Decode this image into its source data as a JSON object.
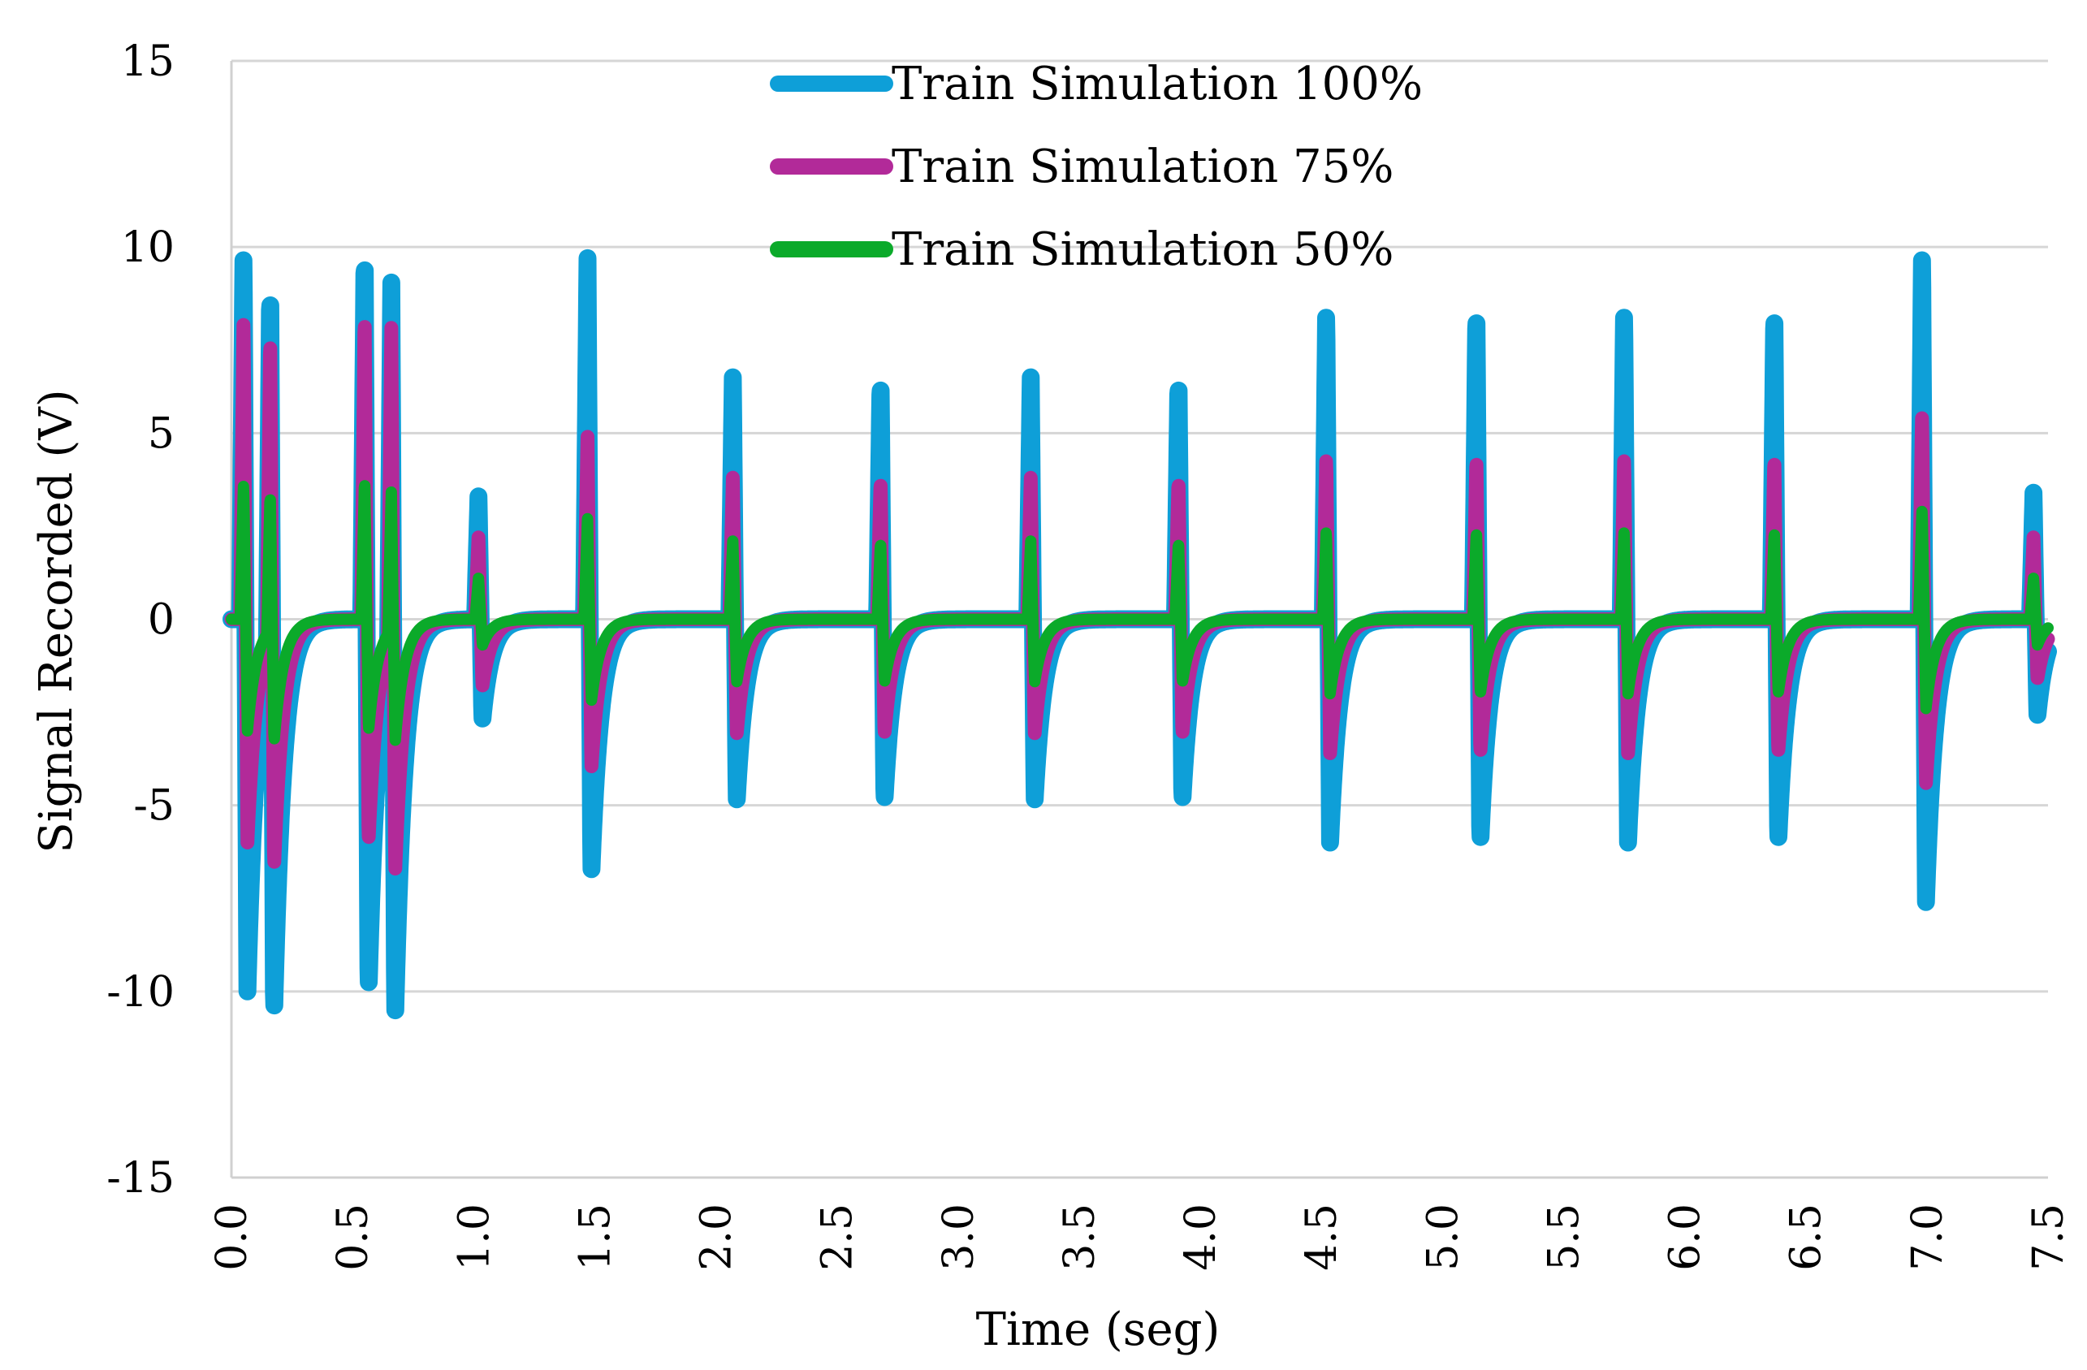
{
  "chart_data": {
    "type": "line",
    "title": "",
    "xlabel": "Time (seg)",
    "ylabel": "Signal Recorded (V)",
    "xlim": [
      0,
      7.5
    ],
    "ylim": [
      -15,
      15
    ],
    "x_ticks": [
      "0.0",
      "0.5",
      "1.0",
      "1.5",
      "2.0",
      "2.5",
      "3.0",
      "3.5",
      "4.0",
      "4.5",
      "5.0",
      "5.5",
      "6.0",
      "6.5",
      "7.0",
      "7.5"
    ],
    "y_ticks": [
      "15",
      "10",
      "5",
      "0",
      "-5",
      "-10",
      "-15"
    ],
    "grid": "horizontal",
    "legend_position": "top-center",
    "series": [
      {
        "name": "Train Simulation 100%",
        "color": "#0E9FD8",
        "pulses": [
          {
            "t": 0.05,
            "pos": 10,
            "neg": -10
          },
          {
            "t": 0.16,
            "pos": 10,
            "neg": -10
          },
          {
            "t": 0.55,
            "pos": 10,
            "neg": -10
          },
          {
            "t": 0.66,
            "pos": 10,
            "neg": -10
          },
          {
            "t": 1.02,
            "pos": 3.3,
            "neg": -2.7
          },
          {
            "t": 1.47,
            "pos": 9.7,
            "neg": -6.8
          },
          {
            "t": 2.07,
            "pos": 6.5,
            "neg": -4.9
          },
          {
            "t": 2.68,
            "pos": 6.5,
            "neg": -4.9
          },
          {
            "t": 3.3,
            "pos": 6.5,
            "neg": -4.9
          },
          {
            "t": 3.91,
            "pos": 6.5,
            "neg": -4.9
          },
          {
            "t": 4.52,
            "pos": 8.4,
            "neg": -6.0
          },
          {
            "t": 5.14,
            "pos": 8.4,
            "neg": -6.0
          },
          {
            "t": 5.75,
            "pos": 8.4,
            "neg": -6.0
          },
          {
            "t": 6.37,
            "pos": 8.4,
            "neg": -6.0
          },
          {
            "t": 6.98,
            "pos": 10,
            "neg": -7.6
          },
          {
            "t": 7.44,
            "pos": 3.4,
            "neg": -2.6
          }
        ]
      },
      {
        "name": "Train Simulation 75%",
        "color": "#B22A99",
        "pulses": [
          {
            "t": 0.05,
            "pos": 8.2,
            "neg": -6.0
          },
          {
            "t": 0.16,
            "pos": 8.3,
            "neg": -6.3
          },
          {
            "t": 0.55,
            "pos": 8.3,
            "neg": -6.0
          },
          {
            "t": 0.66,
            "pos": 8.4,
            "neg": -6.4
          },
          {
            "t": 1.02,
            "pos": 2.2,
            "neg": -1.8
          },
          {
            "t": 1.47,
            "pos": 4.9,
            "neg": -4.0
          },
          {
            "t": 2.07,
            "pos": 3.8,
            "neg": -3.1
          },
          {
            "t": 2.68,
            "pos": 3.8,
            "neg": -3.1
          },
          {
            "t": 3.3,
            "pos": 3.8,
            "neg": -3.1
          },
          {
            "t": 3.91,
            "pos": 3.8,
            "neg": -3.1
          },
          {
            "t": 4.52,
            "pos": 4.4,
            "neg": -3.6
          },
          {
            "t": 5.14,
            "pos": 4.4,
            "neg": -3.6
          },
          {
            "t": 5.75,
            "pos": 4.4,
            "neg": -3.6
          },
          {
            "t": 6.37,
            "pos": 4.4,
            "neg": -3.6
          },
          {
            "t": 6.98,
            "pos": 5.6,
            "neg": -4.4
          },
          {
            "t": 7.44,
            "pos": 2.2,
            "neg": -1.6
          }
        ]
      },
      {
        "name": "Train Simulation 50%",
        "color": "#0BAA2A",
        "pulses": [
          {
            "t": 0.05,
            "pos": 3.7,
            "neg": -3.0
          },
          {
            "t": 0.16,
            "pos": 3.7,
            "neg": -3.1
          },
          {
            "t": 0.55,
            "pos": 3.8,
            "neg": -3.0
          },
          {
            "t": 0.66,
            "pos": 3.7,
            "neg": -3.1
          },
          {
            "t": 1.02,
            "pos": 1.1,
            "neg": -0.7
          },
          {
            "t": 1.47,
            "pos": 2.7,
            "neg": -2.2
          },
          {
            "t": 2.07,
            "pos": 2.1,
            "neg": -1.7
          },
          {
            "t": 2.68,
            "pos": 2.1,
            "neg": -1.7
          },
          {
            "t": 3.3,
            "pos": 2.1,
            "neg": -1.7
          },
          {
            "t": 3.91,
            "pos": 2.1,
            "neg": -1.7
          },
          {
            "t": 4.52,
            "pos": 2.4,
            "neg": -2.0
          },
          {
            "t": 5.14,
            "pos": 2.4,
            "neg": -2.0
          },
          {
            "t": 5.75,
            "pos": 2.4,
            "neg": -2.0
          },
          {
            "t": 6.37,
            "pos": 2.4,
            "neg": -2.0
          },
          {
            "t": 6.98,
            "pos": 3.0,
            "neg": -2.4
          },
          {
            "t": 7.44,
            "pos": 1.1,
            "neg": -0.7
          }
        ]
      }
    ]
  }
}
